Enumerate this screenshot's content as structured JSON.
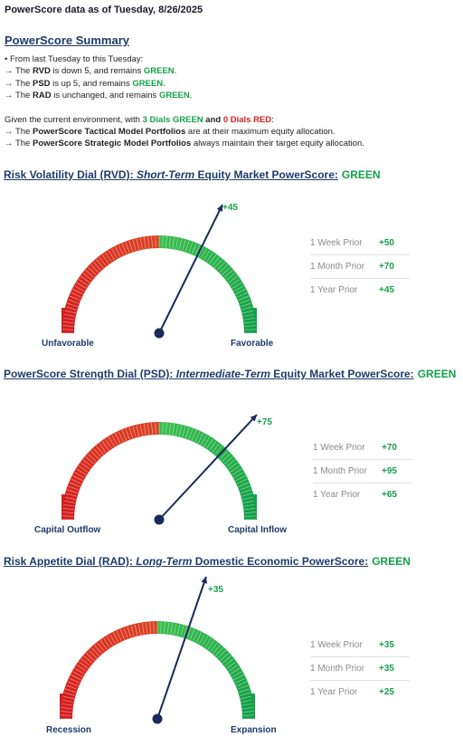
{
  "header": "PowerScore data as of Tuesday, 8/26/2025",
  "summary": {
    "title": "PowerScore Summary",
    "line1": "• From last Tuesday to this Tuesday:",
    "rvd": {
      "pre": "→ The ",
      "name": "RVD",
      "mid": " is down 5, and remains ",
      "status": "GREEN",
      "post": "."
    },
    "psd": {
      "pre": "→ The ",
      "name": "PSD",
      "mid": " is up 5, and remains ",
      "status": "GREEN",
      "post": "."
    },
    "rad": {
      "pre": "→ The ",
      "name": "RAD",
      "mid": " is unchanged, and remains ",
      "status": "GREEN",
      "post": "."
    },
    "env": {
      "pre": "Given the current environment, with ",
      "g": "3 Dials GREEN",
      "and": " and ",
      "r": "0 Dials RED",
      "post": ":"
    },
    "tactical": {
      "pre": "→ The ",
      "name": "PowerScore Tactical Model Portfolios",
      "post": " are at their maximum equity allocation."
    },
    "strategic": {
      "pre": "→ The ",
      "name": "PowerScore Strategic Model Portfolios",
      "post": " always maintain their target equity allocation."
    }
  },
  "dials": [
    {
      "title_a": "Risk Volatility Dial (RVD):",
      "title_b": "Short-Term",
      "title_c": " Equity Market PowerScore:",
      "status": "GREEN",
      "value": "+45",
      "left_label": "Unfavorable",
      "right_label": "Favorable",
      "priors": [
        {
          "label": "1 Week Prior",
          "value": "+50"
        },
        {
          "label": "1 Month Prior",
          "value": "+70"
        },
        {
          "label": "1 Year Prior",
          "value": "+45"
        }
      ]
    },
    {
      "title_a": "PowerScore Strength Dial (PSD):",
      "title_b": "Intermediate-Term",
      "title_c": " Equity Market PowerScore:",
      "status": "GREEN",
      "value": "+75",
      "left_label": "Capital Outflow",
      "right_label": "Capital Inflow",
      "priors": [
        {
          "label": "1 Week Prior",
          "value": "+70"
        },
        {
          "label": "1 Month Prior",
          "value": "+95"
        },
        {
          "label": "1 Year Prior",
          "value": "+65"
        }
      ]
    },
    {
      "title_a": "Risk Appetite Dial (RAD):",
      "title_b": "Long-Term",
      "title_c": " Domestic Economic PowerScore:",
      "status": "GREEN",
      "value": "+35",
      "left_label": "Recession",
      "right_label": "Expansion",
      "priors": [
        {
          "label": "1 Week Prior",
          "value": "+35"
        },
        {
          "label": "1 Month Prior",
          "value": "+35"
        },
        {
          "label": "1 Year Prior",
          "value": "+25"
        }
      ]
    }
  ],
  "colors": {
    "green": "#14a14a",
    "red": "#d42020",
    "navy": "#1a2a5a",
    "heading": "#1f3a6b"
  }
}
